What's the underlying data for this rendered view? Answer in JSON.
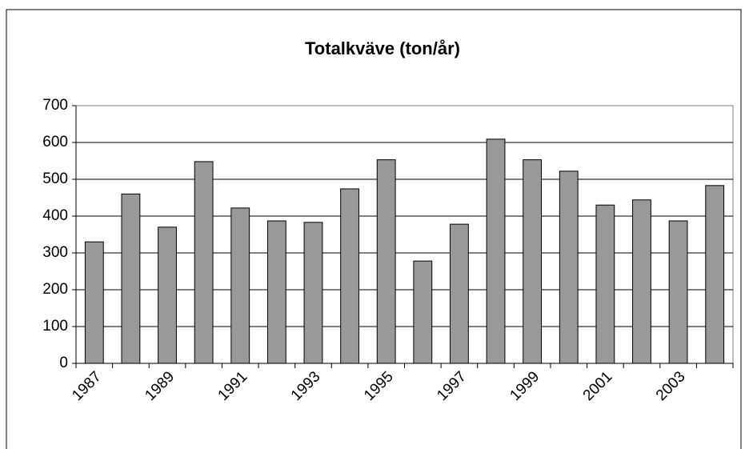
{
  "chart_data": {
    "type": "bar",
    "title": "Totalkväve (ton/år)",
    "categories": [
      "1987",
      null,
      "1989",
      null,
      "1991",
      null,
      "1993",
      null,
      "1995",
      null,
      "1997",
      null,
      "1999",
      null,
      "2001",
      null,
      "2003",
      null
    ],
    "values": [
      330,
      460,
      370,
      548,
      422,
      387,
      383,
      474,
      553,
      278,
      378,
      609,
      553,
      522,
      430,
      444,
      387,
      483
    ],
    "color": "#999999",
    "ylim": [
      0,
      700
    ],
    "yticks": [
      0,
      100,
      200,
      300,
      400,
      500,
      600,
      700
    ],
    "grid": true
  }
}
